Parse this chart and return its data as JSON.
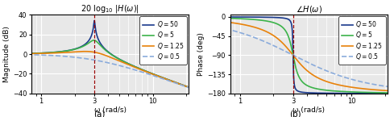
{
  "omega_0": 3,
  "Q_values": [
    50,
    5,
    1.25,
    0.5
  ],
  "colors": [
    "#1a3a8c",
    "#3cb34a",
    "#e8820a",
    "#8aabdb"
  ],
  "linestyles": [
    "-",
    "-",
    "-",
    "--"
  ],
  "mag_ylim": [
    -40,
    40
  ],
  "phase_ylim": [
    -180,
    5
  ],
  "mag_yticks": [
    -40,
    -20,
    0,
    20,
    40
  ],
  "phase_yticks": [
    -180,
    -135,
    -90,
    -45,
    0
  ],
  "xticks": [
    1,
    3,
    10
  ],
  "xlabel": "ω (rad/s)",
  "ylabel_mag": "Magnitude (dB)",
  "ylabel_phase": "Phase (deg)",
  "title_mag": "20 log$_{10}$ $|H(\\omega)|$",
  "title_phase": "$\\angle H(\\omega)$",
  "vline_color": "#990000",
  "vline_x": 3,
  "label_a": "(a)",
  "label_b": "(b)",
  "legend_labels": [
    "$Q = 50$",
    "$Q = 5$",
    "$Q = 1.25$",
    "$Q = 0.5$"
  ],
  "background_color": "#e8e8e8",
  "grid_color": "white",
  "linewidth": 1.2
}
